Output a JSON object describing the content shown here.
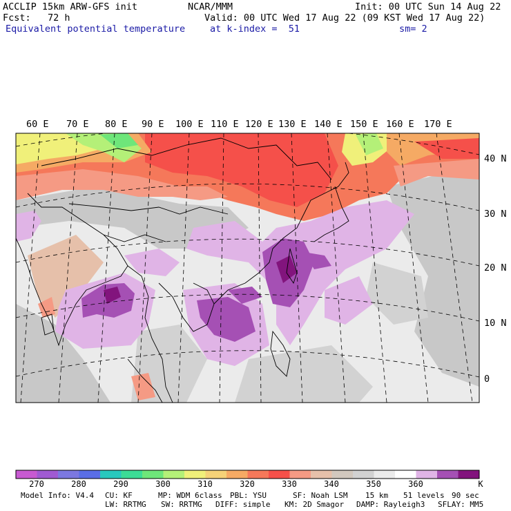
{
  "header": {
    "left_line1": "ACCLIP 15km ARW-GFS init",
    "left_line2": "Fcst:   72 h",
    "field_name": "Equivalent potential temperature",
    "center_line1": "NCAR/MMM",
    "valid_line": "Valid: 00 UTC Wed 17 Aug 22 (09 KST Wed 17 Aug 22)",
    "level_line": "at k-index =  51",
    "init_line": "Init: 00 UTC Sun 14 Aug 22",
    "smooth_line": "sm= 2"
  },
  "longitude_labels": [
    "60 E",
    "70 E",
    "80 E",
    "90 E",
    "100 E",
    "110 E",
    "120 E",
    "130 E",
    "140 E",
    "150 E",
    "160 E",
    "170 E"
  ],
  "latitude_labels": [
    "40 N",
    "30 N",
    "20 N",
    "10 N",
    "0"
  ],
  "colorbar": {
    "colors": [
      "#c85ad2",
      "#a05ad2",
      "#7c78e0",
      "#5a6ee6",
      "#28c8be",
      "#3cdc96",
      "#6ee67a",
      "#b4f078",
      "#f0f07a",
      "#f5d278",
      "#f5aa64",
      "#f5785a",
      "#f5504a",
      "#f59a84",
      "#e6c0aa",
      "#d2c8be",
      "#d2d2d2",
      "#ebebeb",
      "#ffffff",
      "#e0b4e6",
      "#a550b4",
      "#82147d"
    ],
    "tick_labels": [
      "270",
      "280",
      "290",
      "300",
      "310",
      "320",
      "330",
      "340",
      "350",
      "360"
    ],
    "unit": "K"
  },
  "footer": {
    "model_info": "Model Info: V4.4",
    "cu": "CU: KF",
    "mp": "MP: WDM 6class",
    "pbl": "PBL: YSU",
    "sf": "SF: Noah LSM",
    "res": "15 km",
    "levels": "51 levels",
    "dt": "90 sec",
    "lw": "LW: RRTMG",
    "sw": "SW: RRTMG",
    "diff": "DIFF: simple",
    "km": "KM: 2D Smagor",
    "damp": "DAMP: Rayleigh3",
    "sflay": "SFLAY: MM5"
  }
}
